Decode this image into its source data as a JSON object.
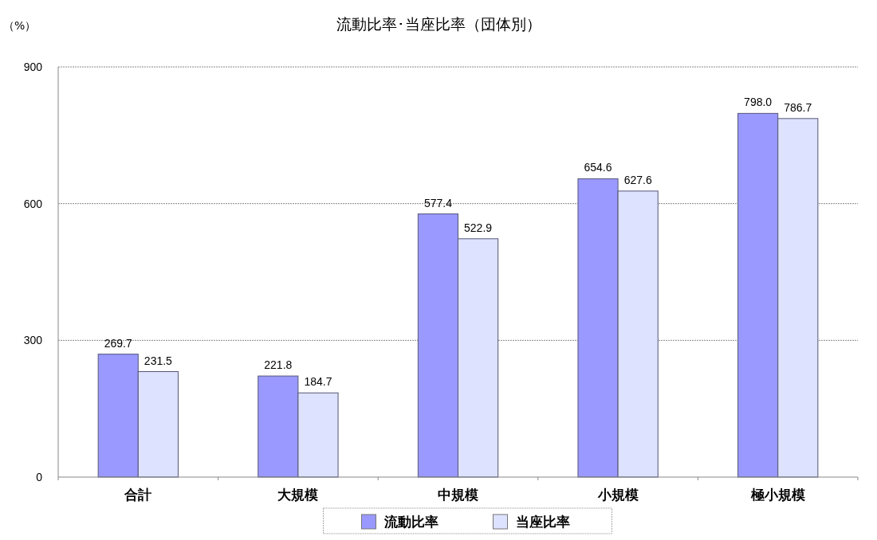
{
  "chart_data": {
    "type": "bar",
    "title": "流動比率･当座比率（団体別）",
    "ylabel": "（%）",
    "categories": [
      "合計",
      "大規模",
      "中規模",
      "小規模",
      "極小規模"
    ],
    "series": [
      {
        "name": "流動比率",
        "color": "#9999ff",
        "values": [
          269.7,
          221.8,
          577.4,
          654.6,
          798.0
        ],
        "value_labels": [
          "269.7",
          "221.8",
          "577.4",
          "654.6",
          "798.0"
        ]
      },
      {
        "name": "当座比率",
        "color": "#dde2ff",
        "values": [
          231.5,
          184.7,
          522.9,
          627.6,
          786.7
        ],
        "value_labels": [
          "231.5",
          "184.7",
          "522.9",
          "627.6",
          "786.7"
        ]
      }
    ],
    "ylim": [
      0,
      900
    ],
    "yticks": [
      0,
      300,
      600,
      900
    ],
    "grid": "y",
    "legend": "bottom"
  }
}
